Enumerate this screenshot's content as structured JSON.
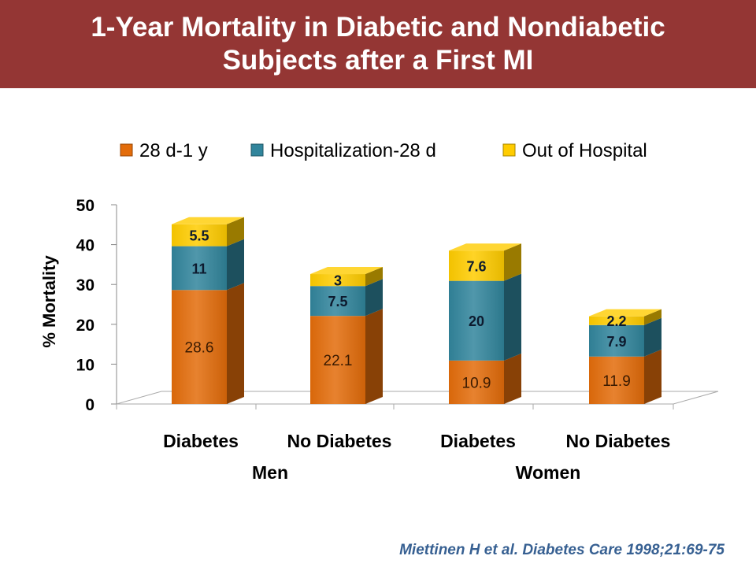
{
  "title": {
    "line1": "1-Year Mortality in Diabetic and Nondiabetic",
    "line2": "Subjects after a First MI"
  },
  "citation": "Miettinen H et al. Diabetes Care 1998;21:69-75",
  "colors": {
    "title_bar": "#943634",
    "series": [
      "#E36C0A",
      "#31859C",
      "#FFCC00"
    ],
    "citation": "#376092"
  },
  "chart_data": {
    "type": "bar",
    "stacked": true,
    "three_d": true,
    "categories": [
      "Diabetes",
      "No Diabetes",
      "Diabetes",
      "No Diabetes"
    ],
    "groups": [
      {
        "label": "Men",
        "categories": [
          0,
          1
        ]
      },
      {
        "label": "Women",
        "categories": [
          2,
          3
        ]
      }
    ],
    "series": [
      {
        "name": "28 d-1 y",
        "values": [
          28.6,
          22.1,
          10.9,
          11.9
        ],
        "labels": [
          "28.6",
          "22.1",
          "10.9",
          "11.9"
        ]
      },
      {
        "name": "Hospitalization-28 d",
        "values": [
          11,
          7.5,
          20,
          7.9
        ],
        "labels": [
          "11",
          "7.5",
          "20",
          "7.9"
        ]
      },
      {
        "name": "Out of Hospital",
        "values": [
          5.5,
          3,
          7.6,
          2.2
        ],
        "labels": [
          "5.5",
          "3",
          "7.6",
          "2.2"
        ]
      }
    ],
    "ylabel": "% Mortality",
    "ylim": [
      0,
      50
    ],
    "yticks": [
      0,
      10,
      20,
      30,
      40,
      50
    ],
    "legend_position": "top",
    "grid": false
  }
}
